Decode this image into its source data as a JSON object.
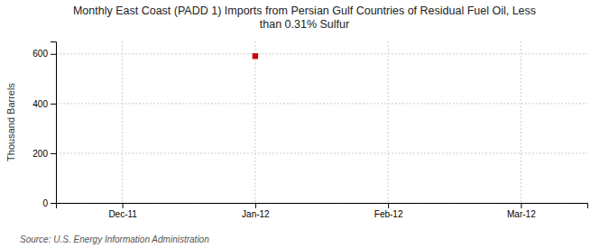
{
  "chart_data": {
    "type": "scatter",
    "title": "Monthly East Coast (PADD 1) Imports from Persian Gulf Countries of Residual Fuel Oil, Less\nthan 0.31% Sulfur",
    "y_label": "Thousand Barrels",
    "source": "Source: U.S. Energy Information Administration",
    "categories": [
      "Dec-11",
      "Jan-12",
      "Feb-12",
      "Mar-12"
    ],
    "values": [
      null,
      591,
      null,
      null
    ],
    "color": "#cc0000",
    "marker": "square",
    "ylim": [
      0,
      650
    ],
    "yticks": [
      0,
      200,
      400,
      600
    ],
    "grid": true
  }
}
